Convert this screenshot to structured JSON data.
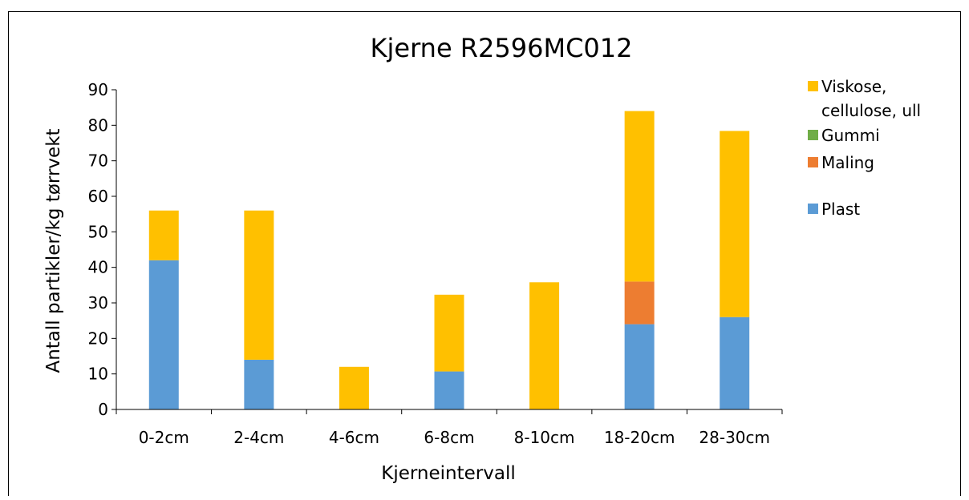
{
  "chart_data": {
    "type": "bar",
    "stacked": true,
    "title": "Kjerne R2596MC012",
    "xlabel": "Kjerneintervall",
    "ylabel": "Antall partikler/kg tørrvekt",
    "categories": [
      "0-2cm",
      "2-4cm",
      "4-6cm",
      "6-8cm",
      "8-10cm",
      "18-20cm",
      "28-30cm"
    ],
    "ylim": [
      0,
      90
    ],
    "yticks": [
      0,
      10,
      20,
      30,
      40,
      50,
      60,
      70,
      80,
      90
    ],
    "grid": false,
    "legend_position": "right",
    "series": [
      {
        "name": "Plast",
        "color": "#5B9BD5",
        "values": [
          42,
          14,
          0,
          10.7,
          0,
          24,
          26
        ]
      },
      {
        "name": "Maling",
        "color": "#ED7D31",
        "values": [
          0,
          0,
          0,
          0,
          0,
          12,
          0
        ]
      },
      {
        "name": "Gummi",
        "color": "#70AD47",
        "values": [
          0,
          0,
          0,
          0,
          0,
          0,
          0
        ]
      },
      {
        "name": "Viskose, cellulose, ull",
        "name_lines": [
          "Viskose,",
          "cellulose, ull"
        ],
        "color": "#FFC000",
        "values": [
          14,
          42,
          12,
          21.6,
          35.8,
          48,
          52.4
        ]
      }
    ]
  }
}
